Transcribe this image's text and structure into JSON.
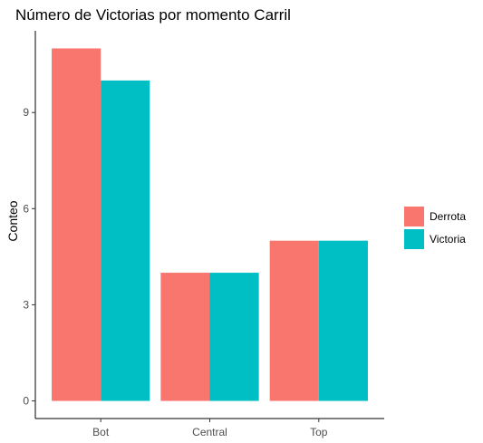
{
  "chart_data": {
    "type": "bar",
    "title": "Número de Victorias por momento Carril",
    "xlabel": "",
    "ylabel": "Conteo",
    "categories": [
      "Bot",
      "Central",
      "Top"
    ],
    "series": [
      {
        "name": "Derrota",
        "color": "#F8766D",
        "values": [
          11,
          4,
          5
        ]
      },
      {
        "name": "Victoria",
        "color": "#00BFC4",
        "values": [
          10,
          4,
          5
        ]
      }
    ],
    "y_ticks": [
      0,
      3,
      6,
      9
    ],
    "ylim": [
      -0.55,
      11.55
    ],
    "grid": false,
    "legend_position": "right"
  }
}
